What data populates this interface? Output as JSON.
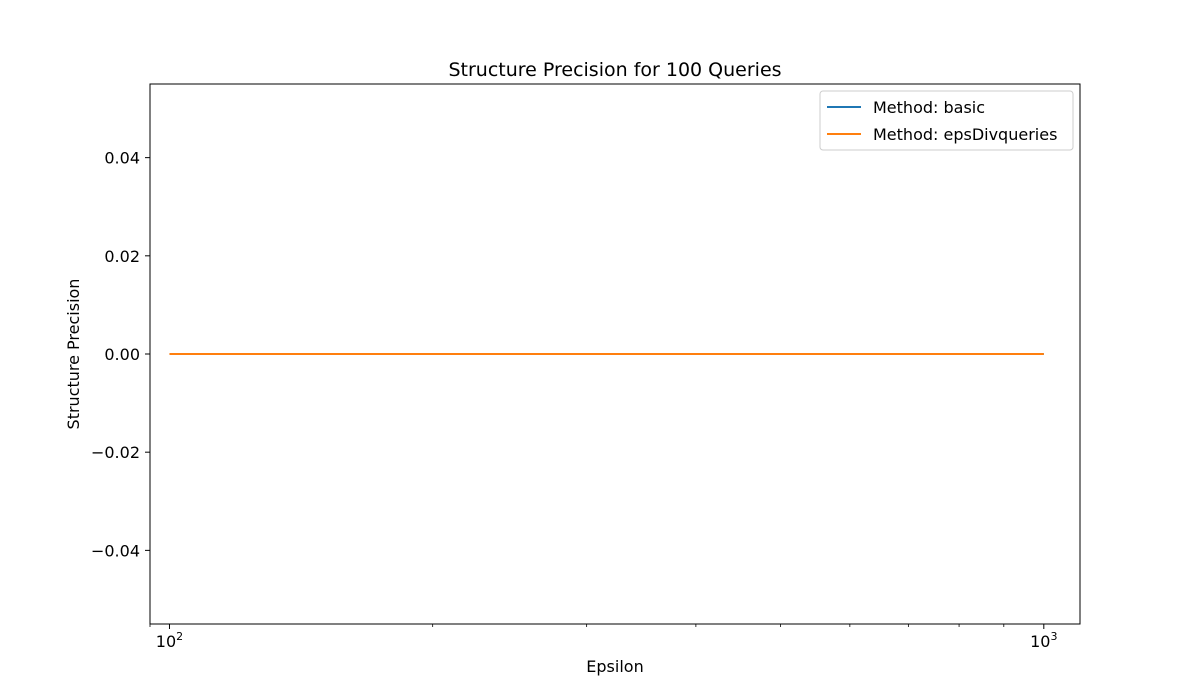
{
  "chart_data": {
    "type": "line",
    "title": "Structure Precision for 100 Queries",
    "xlabel": "Epsilon",
    "ylabel": "Structure Precision",
    "xscale": "log",
    "xlim": [
      95,
      1100
    ],
    "ylim": [
      -0.055,
      0.055
    ],
    "x_ticks": [
      {
        "value": 100,
        "base": "10",
        "exp": "2"
      },
      {
        "value": 1000,
        "base": "10",
        "exp": "3"
      }
    ],
    "x_minor_ticks": [
      200,
      300,
      400,
      500,
      600,
      700,
      800,
      900
    ],
    "y_ticks": [
      {
        "value": -0.04,
        "label": "−0.04"
      },
      {
        "value": -0.02,
        "label": "−0.02"
      },
      {
        "value": 0.0,
        "label": "0.00"
      },
      {
        "value": 0.02,
        "label": "0.02"
      },
      {
        "value": 0.04,
        "label": "0.04"
      }
    ],
    "grid": false,
    "legend_position": "top-right",
    "series": [
      {
        "name": "Method: basic",
        "color": "#1f77b4",
        "x": [
          100,
          1000
        ],
        "y": [
          0.0,
          0.0
        ]
      },
      {
        "name": "Method: epsDivqueries",
        "color": "#ff7f0e",
        "x": [
          100,
          1000
        ],
        "y": [
          0.0,
          0.0
        ]
      }
    ]
  }
}
